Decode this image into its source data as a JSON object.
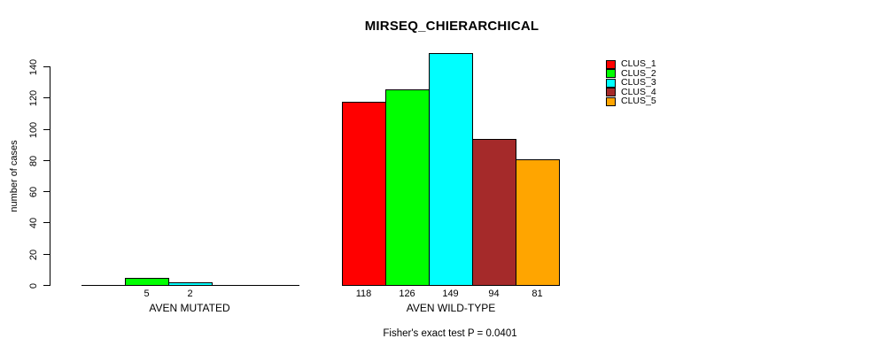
{
  "chart_data": {
    "type": "bar",
    "title": "MIRSEQ_CHIERARCHICAL",
    "xlabel": "",
    "ylabel": "number of cases",
    "groups": [
      "AVEN MUTATED",
      "AVEN WILD-TYPE"
    ],
    "series": [
      {
        "name": "CLUS_1",
        "color": "#ff0000",
        "values": [
          0,
          118
        ]
      },
      {
        "name": "CLUS_2",
        "color": "#00ff00",
        "values": [
          5,
          126
        ]
      },
      {
        "name": "CLUS_3",
        "color": "#00ffff",
        "values": [
          2,
          149
        ]
      },
      {
        "name": "CLUS_4",
        "color": "#a52a2a",
        "values": [
          0,
          94
        ]
      },
      {
        "name": "CLUS_5",
        "color": "#ffa500",
        "values": [
          0,
          81
        ]
      }
    ],
    "yticks": [
      0,
      20,
      40,
      60,
      80,
      100,
      120,
      140
    ],
    "ylim": [
      0,
      150
    ],
    "grid": false,
    "legend_position": "top-right",
    "bar_value_labels": "values shown under each bar, only for values > 0",
    "annotation": "Fisher's exact test P = 0.0401"
  }
}
